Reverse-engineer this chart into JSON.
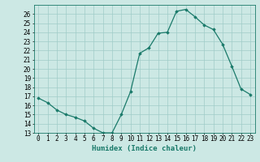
{
  "x": [
    0,
    1,
    2,
    3,
    4,
    5,
    6,
    7,
    8,
    9,
    10,
    11,
    12,
    13,
    14,
    15,
    16,
    17,
    18,
    19,
    20,
    21,
    22,
    23
  ],
  "y": [
    16.8,
    16.3,
    15.5,
    15.0,
    14.7,
    14.3,
    13.5,
    13.0,
    13.0,
    15.0,
    17.5,
    21.7,
    22.3,
    23.9,
    24.0,
    26.3,
    26.5,
    25.7,
    24.8,
    24.3,
    22.7,
    20.3,
    17.8,
    17.2
  ],
  "line_color": "#1a7a6a",
  "marker_color": "#1a7a6a",
  "bg_color": "#cce8e4",
  "grid_color": "#a0ccc8",
  "xlabel": "Humidex (Indice chaleur)",
  "ylim": [
    13,
    27
  ],
  "xlim": [
    -0.5,
    23.5
  ],
  "yticks": [
    13,
    14,
    15,
    16,
    17,
    18,
    19,
    20,
    21,
    22,
    23,
    24,
    25,
    26
  ],
  "xticks": [
    0,
    1,
    2,
    3,
    4,
    5,
    6,
    7,
    8,
    9,
    10,
    11,
    12,
    13,
    14,
    15,
    16,
    17,
    18,
    19,
    20,
    21,
    22,
    23
  ],
  "tick_fontsize": 5.5,
  "label_fontsize": 6.5
}
